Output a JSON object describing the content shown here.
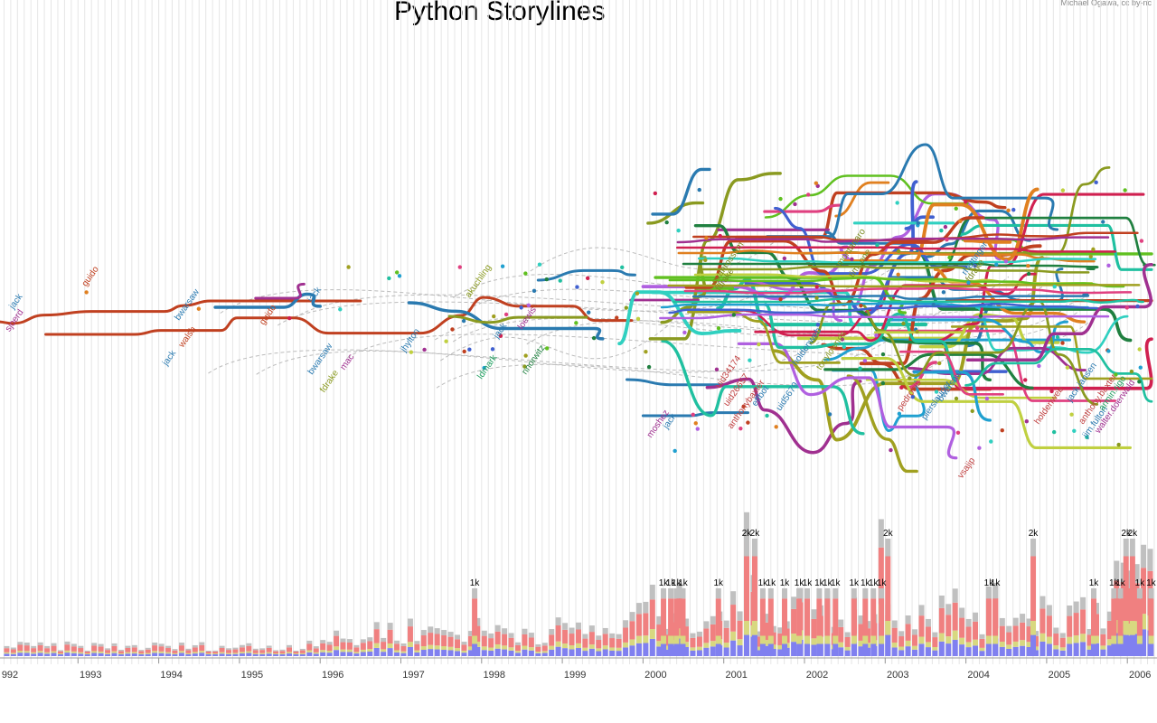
{
  "title": "Python Storylines",
  "credit": "Michael Ogawa, cc by-nc",
  "colors": {
    "background": "#ffffff",
    "gridline": "#e6e6e6",
    "bar_blue": "#8080f0",
    "bar_yellow": "#d8d880",
    "bar_red": "#f08080",
    "bar_gray": "#c0c0c0"
  },
  "chart_data": {
    "type": "bar",
    "x_labels": [
      "992",
      "1993",
      "1994",
      "1995",
      "1996",
      "1997",
      "1998",
      "1999",
      "2000",
      "2001",
      "2002",
      "2003",
      "2004",
      "2005",
      "2006"
    ],
    "bar_labels": [
      {
        "year": 1997.88,
        "text": "1k"
      },
      {
        "year": 2000.22,
        "text": "1k"
      },
      {
        "year": 2000.31,
        "text": "1k"
      },
      {
        "year": 2000.38,
        "text": "1k"
      },
      {
        "year": 2000.46,
        "text": "1k"
      },
      {
        "year": 2000.9,
        "text": "1k"
      },
      {
        "year": 2001.25,
        "text": "2k"
      },
      {
        "year": 2001.35,
        "text": "2k"
      },
      {
        "year": 2001.45,
        "text": "1k"
      },
      {
        "year": 2001.55,
        "text": "1k"
      },
      {
        "year": 2001.72,
        "text": "1k"
      },
      {
        "year": 2001.9,
        "text": "1k"
      },
      {
        "year": 2002.0,
        "text": "1k"
      },
      {
        "year": 2002.15,
        "text": "1k"
      },
      {
        "year": 2002.25,
        "text": "1k"
      },
      {
        "year": 2002.35,
        "text": "1k"
      },
      {
        "year": 2002.58,
        "text": "1k"
      },
      {
        "year": 2002.72,
        "text": "1k"
      },
      {
        "year": 2002.82,
        "text": "1k"
      },
      {
        "year": 2002.92,
        "text": "1k"
      },
      {
        "year": 2003.0,
        "text": "2k"
      },
      {
        "year": 2004.25,
        "text": "1k"
      },
      {
        "year": 2004.33,
        "text": "1k"
      },
      {
        "year": 2004.8,
        "text": "2k"
      },
      {
        "year": 2005.55,
        "text": "1k"
      },
      {
        "year": 2005.8,
        "text": "1k"
      },
      {
        "year": 2005.88,
        "text": "1k"
      },
      {
        "year": 2005.95,
        "text": "2k"
      },
      {
        "year": 2006.03,
        "text": "2k"
      },
      {
        "year": 2006.12,
        "text": "1k"
      },
      {
        "year": 2006.26,
        "text": "1k"
      }
    ],
    "developer_labels": [
      {
        "text": "jack",
        "year": 1992.2,
        "pos": 0.45,
        "color": "#2a7ab0"
      },
      {
        "text": "sjoerd",
        "year": 1992.15,
        "pos": 0.55,
        "color": "#a03090"
      },
      {
        "text": "guido",
        "year": 1993.1,
        "pos": 0.35,
        "color": "#c04020"
      },
      {
        "text": "bwarsaw",
        "year": 1994.25,
        "pos": 0.5,
        "color": "#2a7ab0"
      },
      {
        "text": "walsh",
        "year": 1994.3,
        "pos": 0.62,
        "color": "#c04020"
      },
      {
        "text": "jack",
        "year": 1994.1,
        "pos": 0.7,
        "color": "#2a7ab0"
      },
      {
        "text": "guido",
        "year": 1995.3,
        "pos": 0.52,
        "color": "#c04020"
      },
      {
        "text": "jack",
        "year": 1995.9,
        "pos": 0.42,
        "color": "#2a7ab0"
      },
      {
        "text": "bwarsaw",
        "year": 1995.9,
        "pos": 0.74,
        "color": "#2a7ab0"
      },
      {
        "text": "fdrake",
        "year": 1996.05,
        "pos": 0.82,
        "color": "#8a9a20"
      },
      {
        "text": "mac",
        "year": 1996.3,
        "pos": 0.72,
        "color": "#a03090"
      },
      {
        "text": "jhylton",
        "year": 1997.05,
        "pos": 0.64,
        "color": "#2a7ab0"
      },
      {
        "text": "akuchling",
        "year": 1997.85,
        "pos": 0.4,
        "color": "#8a9a20"
      },
      {
        "text": "jack",
        "year": 1998.2,
        "pos": 0.58,
        "color": "#2a7ab0"
      },
      {
        "text": "loewis",
        "year": 1998.5,
        "pos": 0.54,
        "color": "#a03090"
      },
      {
        "text": "ldmark",
        "year": 1998.0,
        "pos": 0.76,
        "color": "#20a060"
      },
      {
        "text": "nnorwitz",
        "year": 1998.55,
        "pos": 0.74,
        "color": "#208040"
      },
      {
        "text": "gvanrossum",
        "year": 2000.9,
        "pos": 0.34,
        "color": "#7a8a20"
      },
      {
        "text": "fdrake",
        "year": 2000.95,
        "pos": 0.37,
        "color": "#7a8a20"
      },
      {
        "text": "montanaro",
        "year": 2002.45,
        "pos": 0.26,
        "color": "#7a8a20"
      },
      {
        "text": "tim_one",
        "year": 2002.6,
        "pos": 0.31,
        "color": "#7a8a20"
      },
      {
        "text": "rhettinger",
        "year": 2004.0,
        "pos": 0.3,
        "color": "#2a7ab0"
      },
      {
        "text": "fdrake",
        "year": 2004.05,
        "pos": 0.33,
        "color": "#7a8a20"
      },
      {
        "text": "jack",
        "year": 2000.3,
        "pos": 0.98,
        "color": "#2a7ab0"
      },
      {
        "text": "moshez",
        "year": 2000.1,
        "pos": 1.02,
        "color": "#a03090"
      },
      {
        "text": "anthonybaxter",
        "year": 2001.1,
        "pos": 0.98,
        "color": "#c04040"
      },
      {
        "text": "effbot",
        "year": 2001.4,
        "pos": 0.88,
        "color": "#2a7ab0"
      },
      {
        "text": "holdenweb",
        "year": 2001.9,
        "pos": 0.7,
        "color": "#2a7ab0"
      },
      {
        "text": "tonylownds",
        "year": 2002.2,
        "pos": 0.72,
        "color": "#8a9a20"
      },
      {
        "text": "pierslauder",
        "year": 2003.5,
        "pos": 0.94,
        "color": "#2a7ab0"
      },
      {
        "text": "pedronis",
        "year": 2003.2,
        "pos": 0.9,
        "color": "#c04040"
      },
      {
        "text": "bwarsaw",
        "year": 2003.7,
        "pos": 0.86,
        "color": "#2a7ab0"
      },
      {
        "text": "vsajip",
        "year": 2003.95,
        "pos": 1.2,
        "color": "#c04040"
      },
      {
        "text": "holdenweb",
        "year": 2004.9,
        "pos": 0.96,
        "color": "#c04040"
      },
      {
        "text": "jack.jansen",
        "year": 2005.3,
        "pos": 0.86,
        "color": "#2a7ab0"
      },
      {
        "text": "anthony.baxter",
        "year": 2005.45,
        "pos": 0.96,
        "color": "#c04040"
      },
      {
        "text": "jim.fulton",
        "year": 2005.5,
        "pos": 1.02,
        "color": "#2a7ab0"
      },
      {
        "text": "walter.doerwald",
        "year": 2005.65,
        "pos": 1.0,
        "color": "#a03090"
      },
      {
        "text": "armin.rigo",
        "year": 2005.7,
        "pos": 0.9,
        "color": "#20a060"
      },
      {
        "text": "uid5679",
        "year": 2001.7,
        "pos": 0.9,
        "color": "#2a7ab0"
      },
      {
        "text": "uid34174",
        "year": 2000.95,
        "pos": 0.8,
        "color": "#c04040"
      },
      {
        "text": "uid26657",
        "year": 2001.05,
        "pos": 0.88,
        "color": "#c04040"
      }
    ]
  }
}
